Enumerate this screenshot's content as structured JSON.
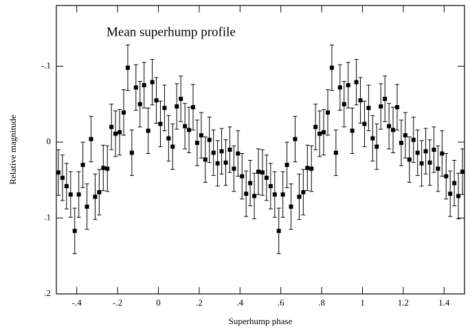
{
  "chart_data": {
    "type": "scatter",
    "title": "Mean superhump profile",
    "x_label": "Superhump phase",
    "y_label": "Relative    magnitude",
    "xlim": [
      -0.5,
      1.5
    ],
    "ylim": [
      -0.18,
      0.2
    ],
    "y_inverted": true,
    "color": "#000000",
    "xticks": [
      {
        "value": -0.4,
        "label": "-.4"
      },
      {
        "value": -0.2,
        "label": "-.2"
      },
      0,
      {
        "value": 0.2,
        "label": ".2"
      },
      {
        "value": 0.4,
        "label": ".4"
      },
      {
        "value": 0.6,
        "label": ".6"
      },
      {
        "value": 0.8,
        "label": ".8"
      },
      1,
      {
        "value": 1.2,
        "label": "1.2"
      },
      {
        "value": 1.4,
        "label": "1.4"
      }
    ],
    "yticks": [
      {
        "value": -0.1,
        "label": "-.1"
      },
      0,
      {
        "value": 0.1,
        "label": ".1"
      },
      {
        "value": 0.2,
        "label": ".2"
      }
    ],
    "x": [
      -0.49,
      -0.47,
      -0.45,
      -0.43,
      -0.41,
      -0.39,
      -0.37,
      -0.35,
      -0.33,
      -0.31,
      -0.29,
      -0.27,
      -0.25,
      -0.23,
      -0.21,
      -0.19,
      -0.17,
      -0.15,
      -0.13,
      -0.11,
      -0.09,
      -0.07,
      -0.05,
      -0.03,
      -0.01,
      0.01,
      0.03,
      0.05,
      0.07,
      0.09,
      0.11,
      0.13,
      0.15,
      0.17,
      0.19,
      0.21,
      0.23,
      0.25,
      0.27,
      0.29,
      0.31,
      0.33,
      0.35,
      0.37,
      0.39,
      0.41,
      0.43,
      0.45,
      0.47,
      0.49,
      0.51,
      0.53,
      0.55,
      0.57,
      0.59,
      0.61,
      0.63,
      0.65,
      0.67,
      0.69,
      0.71,
      0.73,
      0.75,
      0.77,
      0.79,
      0.81,
      0.83,
      0.85,
      0.87,
      0.89,
      0.91,
      0.93,
      0.95,
      0.97,
      0.99,
      1.01,
      1.03,
      1.05,
      1.07,
      1.09,
      1.11,
      1.13,
      1.15,
      1.17,
      1.19,
      1.21,
      1.23,
      1.25,
      1.27,
      1.29,
      1.31,
      1.33,
      1.35,
      1.37,
      1.39,
      1.41,
      1.43,
      1.45,
      1.47,
      1.49
    ],
    "values": [
      0.04,
      0.047,
      0.058,
      0.069,
      0.117,
      0.069,
      0.03,
      0.085,
      -0.004,
      0.072,
      0.066,
      0.034,
      0.035,
      -0.02,
      -0.011,
      -0.013,
      -0.039,
      -0.098,
      0.014,
      -0.072,
      -0.05,
      -0.075,
      -0.015,
      -0.079,
      -0.055,
      -0.024,
      -0.045,
      -0.005,
      0.006,
      -0.047,
      -0.057,
      -0.021,
      -0.016,
      -0.046,
      0.001,
      -0.009,
      0.023,
      -0.003,
      0.014,
      0.028,
      0.012,
      0.027,
      0.01,
      0.035,
      0.015,
      0.045,
      0.068,
      0.054,
      0.071,
      0.039,
      0.04,
      0.047,
      0.058,
      0.069,
      0.117,
      0.069,
      0.03,
      0.085,
      -0.004,
      0.072,
      0.066,
      0.034,
      0.035,
      -0.02,
      -0.011,
      -0.013,
      -0.039,
      -0.098,
      0.014,
      -0.072,
      -0.05,
      -0.075,
      -0.015,
      -0.079,
      -0.055,
      -0.024,
      -0.045,
      -0.005,
      0.006,
      -0.047,
      -0.057,
      -0.021,
      -0.016,
      -0.046,
      0.001,
      -0.009,
      0.023,
      -0.003,
      0.014,
      0.028,
      0.012,
      0.027,
      0.01,
      0.035,
      0.015,
      0.045,
      0.068,
      0.054,
      0.071,
      0.039
    ],
    "errors": [
      0.03,
      0.03,
      0.03,
      0.03,
      0.03,
      0.03,
      0.03,
      0.03,
      0.03,
      0.03,
      0.03,
      0.03,
      0.03,
      0.03,
      0.03,
      0.03,
      0.03,
      0.03,
      0.03,
      0.03,
      0.03,
      0.03,
      0.03,
      0.03,
      0.03,
      0.03,
      0.03,
      0.03,
      0.03,
      0.03,
      0.03,
      0.03,
      0.03,
      0.03,
      0.03,
      0.03,
      0.03,
      0.03,
      0.03,
      0.03,
      0.03,
      0.03,
      0.03,
      0.03,
      0.03,
      0.03,
      0.03,
      0.03,
      0.03,
      0.03,
      0.03,
      0.03,
      0.03,
      0.03,
      0.03,
      0.03,
      0.03,
      0.03,
      0.03,
      0.03,
      0.03,
      0.03,
      0.03,
      0.03,
      0.03,
      0.03,
      0.03,
      0.03,
      0.03,
      0.03,
      0.03,
      0.03,
      0.03,
      0.03,
      0.03,
      0.03,
      0.03,
      0.03,
      0.03,
      0.03,
      0.03,
      0.03,
      0.03,
      0.03,
      0.03,
      0.03,
      0.03,
      0.03,
      0.03,
      0.03,
      0.03,
      0.03,
      0.03,
      0.03,
      0.03,
      0.03,
      0.03,
      0.03,
      0.03,
      0.03
    ]
  }
}
